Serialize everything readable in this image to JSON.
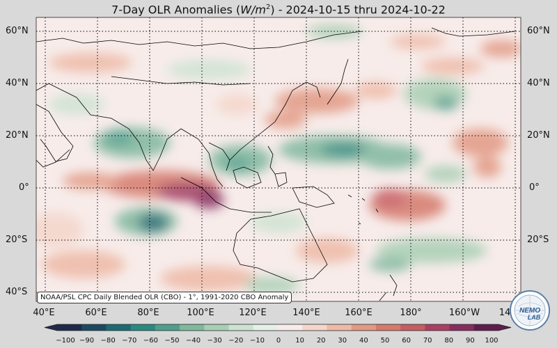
{
  "title": {
    "prefix": "7-Day OLR Anomalies (",
    "var": "W/m",
    "exp": "2",
    "suffix": ") - 2024-10-15 thru 2024-10-22"
  },
  "lat_labels": [
    "60°N",
    "40°N",
    "20°N",
    "0°",
    "20°S",
    "40°S"
  ],
  "lon_labels": [
    "40°E",
    "60°E",
    "80°E",
    "100°E",
    "120°E",
    "140°E",
    "160°E",
    "180°",
    "160°W",
    "14"
  ],
  "source_note": "NOAA/PSL CPC Daily Blended OLR (CBO) - 1°, 1991-2020 CBO Anomaly",
  "colorbar": {
    "ticks": [
      "−100",
      "−90",
      "−80",
      "−70",
      "−60",
      "−50",
      "−40",
      "−30",
      "−20",
      "−10",
      "0",
      "10",
      "20",
      "30",
      "40",
      "50",
      "60",
      "70",
      "80",
      "90",
      "100"
    ],
    "colors": [
      "#1f2a4a",
      "#1d4a63",
      "#1c6b73",
      "#2a8a80",
      "#4f9f8c",
      "#7fb89e",
      "#a8cfb4",
      "#cde3d2",
      "#e6efe8",
      "#f7ecea",
      "#f4d6cb",
      "#eeb9a6",
      "#e29983",
      "#d57a6c",
      "#c65d63",
      "#aa3f62",
      "#872d5e",
      "#5e1d4d"
    ]
  },
  "logo": {
    "text": "NEMO LAB"
  },
  "colors": {
    "ocean_base": "#f7ecea",
    "positive": "#c65d63",
    "negative": "#2a8a80",
    "frame": "#d9d9d9"
  }
}
